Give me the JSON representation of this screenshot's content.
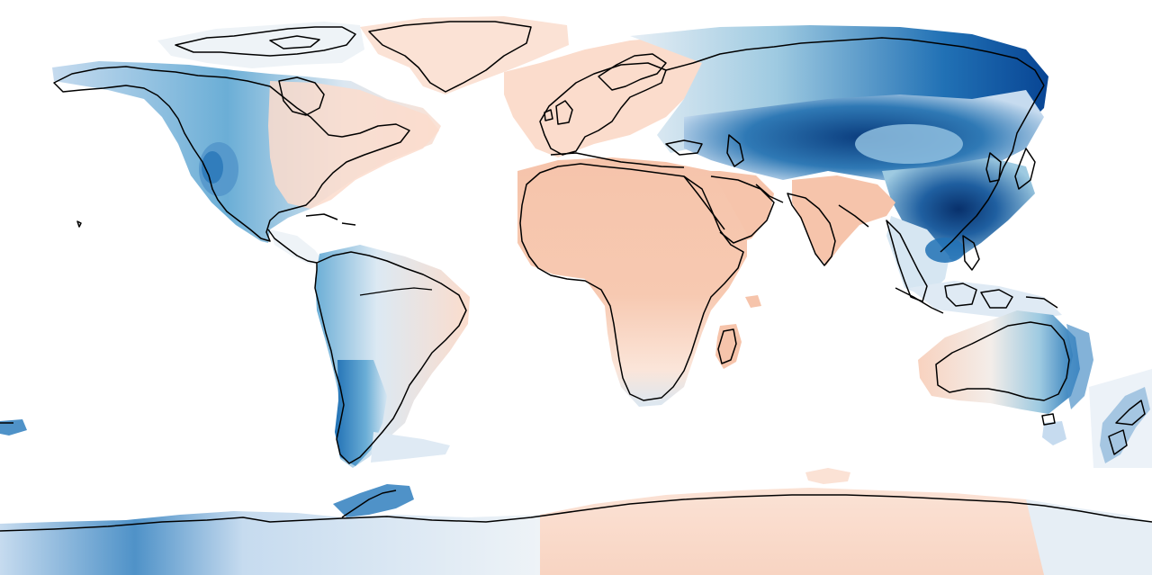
{
  "map": {
    "projection": "plate-carree",
    "extent": {
      "lon": [
        -180,
        180
      ],
      "lat": [
        -90,
        90
      ]
    },
    "ocean_color": "#ffffff",
    "coastline_color": "#000000",
    "colormap": {
      "name": "RdBu",
      "diverging": true,
      "palette_blue_strong": "#08306b",
      "palette_blue_dark": "#084594",
      "palette_blue_mid": "#2171b5",
      "palette_blue_light": "#6baed6",
      "palette_blue_pale": "#c6dbef",
      "palette_neutral": "#f2f5f8",
      "palette_red_pale": "#fbe2d5",
      "palette_red_light": "#f6c4ab"
    },
    "regions": [
      {
        "id": "arctic-canada",
        "sign": "negative",
        "strength": "weak"
      },
      {
        "id": "greenland",
        "sign": "positive",
        "strength": "weak"
      },
      {
        "id": "western-north-america",
        "sign": "negative",
        "strength": "moderate"
      },
      {
        "id": "eastern-north-america",
        "sign": "positive",
        "strength": "weak"
      },
      {
        "id": "western-europe",
        "sign": "positive",
        "strength": "weak"
      },
      {
        "id": "siberia",
        "sign": "negative",
        "strength": "moderate"
      },
      {
        "id": "central-asia",
        "sign": "negative",
        "strength": "strong"
      },
      {
        "id": "china",
        "sign": "negative",
        "strength": "strong"
      },
      {
        "id": "africa",
        "sign": "positive",
        "strength": "moderate"
      },
      {
        "id": "arabia",
        "sign": "positive",
        "strength": "moderate"
      },
      {
        "id": "india",
        "sign": "positive",
        "strength": "moderate"
      },
      {
        "id": "indochina",
        "sign": "negative",
        "strength": "moderate"
      },
      {
        "id": "maritime-continent",
        "sign": "negative",
        "strength": "weak"
      },
      {
        "id": "australia-west",
        "sign": "positive",
        "strength": "weak"
      },
      {
        "id": "australia-east",
        "sign": "negative",
        "strength": "moderate"
      },
      {
        "id": "new-zealand",
        "sign": "negative",
        "strength": "moderate"
      },
      {
        "id": "northern-south-america",
        "sign": "positive",
        "strength": "weak"
      },
      {
        "id": "southern-andes",
        "sign": "negative",
        "strength": "strong"
      },
      {
        "id": "west-antarctica",
        "sign": "negative",
        "strength": "moderate"
      },
      {
        "id": "east-antarctica",
        "sign": "positive",
        "strength": "weak"
      }
    ]
  }
}
